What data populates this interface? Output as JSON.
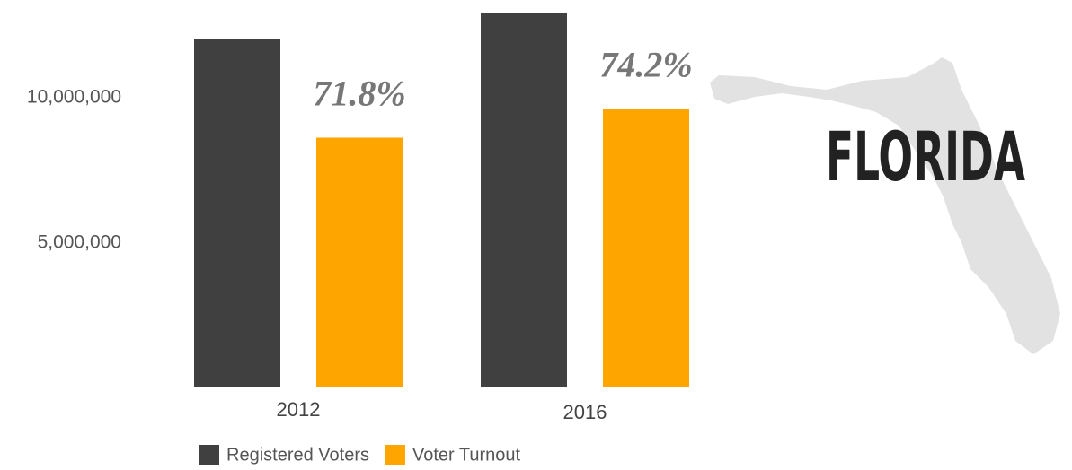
{
  "chart_data": {
    "type": "bar",
    "title": "FLORIDA",
    "categories": [
      "2012",
      "2016"
    ],
    "series": [
      {
        "name": "Registered Voters",
        "color": "#404040",
        "values": [
          12000000,
          12900000
        ]
      },
      {
        "name": "Voter Turnout",
        "color": "#ffa500",
        "values": [
          8600000,
          9600000
        ]
      }
    ],
    "annotations": [
      "71.8%",
      "74.2%"
    ],
    "ylim": [
      0,
      13000000
    ],
    "yticks": [
      {
        "value": 5000000,
        "label": "5,000,000"
      },
      {
        "value": 10000000,
        "label": "10,000,000"
      }
    ],
    "grid": false,
    "legend": "bottom"
  }
}
